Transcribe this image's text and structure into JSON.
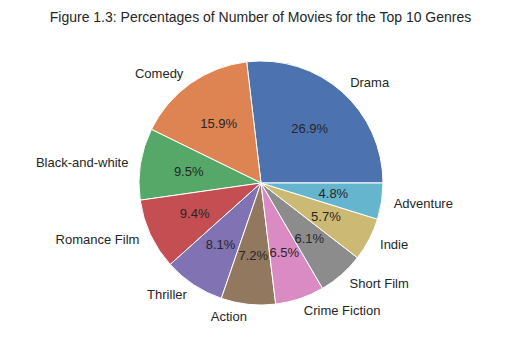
{
  "chart_data": {
    "type": "pie",
    "title": "Figure 1.3: Percentages of Number of Movies for the Top 10 Genres",
    "categories": [
      "Drama",
      "Comedy",
      "Black-and-white",
      "Romance Film",
      "Thriller",
      "Action",
      "Crime Fiction",
      "Short Film",
      "Indie",
      "Adventure"
    ],
    "values": [
      26.9,
      15.9,
      9.5,
      9.4,
      8.1,
      7.2,
      6.5,
      6.1,
      5.7,
      4.8
    ],
    "value_labels": [
      "26.9%",
      "15.9%",
      "9.5%",
      "9.4%",
      "8.1%",
      "7.2%",
      "6.5%",
      "6.1%",
      "5.7%",
      "4.8%"
    ],
    "colors": [
      "#4c72b0",
      "#dd8452",
      "#55a868",
      "#c44e52",
      "#8172b3",
      "#937860",
      "#da8bc3",
      "#8c8c8c",
      "#ccb974",
      "#64b5cd"
    ],
    "data_labels": true
  }
}
